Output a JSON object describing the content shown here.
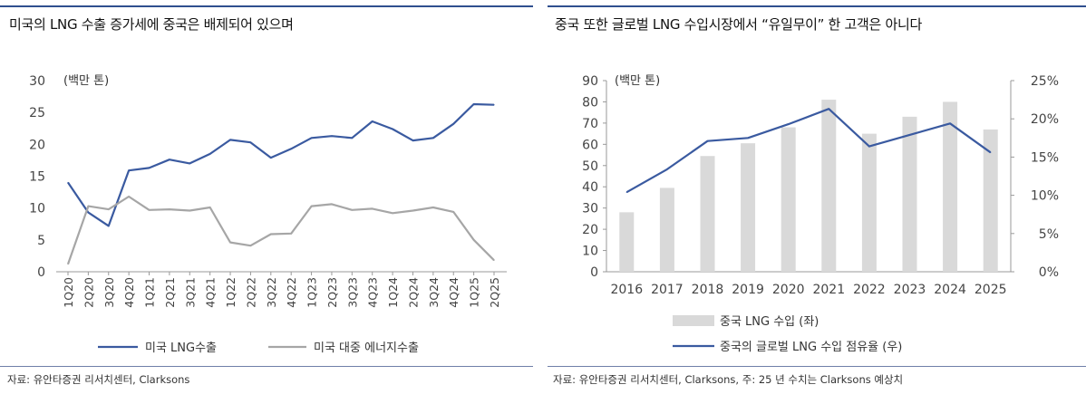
{
  "left": {
    "title": "미국의 LNG 수출 증가세에 중국은 배제되어 있으며",
    "source": "자료: 유안타증권 리서치센터, Clarksons"
  },
  "right": {
    "title": "중국 또한 글로벌 LNG 수입시장에서 “유일무이” 한 고객은 아니다",
    "source": "자료: 유안타증권 리서치센터, Clarksons, 주: 25 년 수치는 Clarksons 예상치"
  },
  "colors": {
    "accent_line": "#2f4f8f",
    "series_blue": "#3a5aa0",
    "series_gray": "#a6a6a6",
    "bar_gray": "#d9d9d9",
    "axis": "#999999"
  },
  "chart_data": [
    {
      "type": "line",
      "unit_label": "(백만 톤)",
      "categories": [
        "1Q20",
        "2Q20",
        "3Q20",
        "4Q20",
        "1Q21",
        "2Q21",
        "3Q21",
        "4Q21",
        "1Q22",
        "2Q22",
        "3Q22",
        "4Q22",
        "1Q23",
        "2Q23",
        "3Q23",
        "4Q23",
        "1Q24",
        "2Q24",
        "3Q24",
        "4Q24",
        "1Q25",
        "2Q25"
      ],
      "ylim": [
        0,
        30
      ],
      "yticks": [
        0,
        5,
        10,
        15,
        20,
        25,
        30
      ],
      "series": [
        {
          "name": "미국 LNG수출",
          "color": "#3a5aa0",
          "values": [
            14.0,
            9.3,
            7.2,
            15.9,
            16.3,
            17.6,
            17.0,
            18.5,
            20.7,
            20.3,
            17.9,
            19.3,
            21.0,
            21.3,
            21.0,
            23.6,
            22.4,
            20.6,
            21.0,
            23.2,
            26.3,
            26.2
          ]
        },
        {
          "name": "미국 대중 에너지수출",
          "color": "#a6a6a6",
          "values": [
            1.2,
            10.3,
            9.8,
            11.8,
            9.7,
            9.8,
            9.6,
            10.1,
            4.6,
            4.1,
            5.9,
            6.0,
            10.3,
            10.6,
            9.7,
            9.9,
            9.2,
            9.6,
            10.1,
            9.4,
            5.0,
            1.8
          ]
        }
      ]
    },
    {
      "type": "bar+line",
      "unit_label": "(백만 톤)",
      "categories": [
        "2016",
        "2017",
        "2018",
        "2019",
        "2020",
        "2021",
        "2022",
        "2023",
        "2024",
        "2025"
      ],
      "ylim_left": [
        0,
        90
      ],
      "yticks_left": [
        0,
        10,
        20,
        30,
        40,
        50,
        60,
        70,
        80,
        90
      ],
      "ylim_right": [
        0,
        25
      ],
      "yticks_right": [
        "0%",
        "5%",
        "10%",
        "15%",
        "20%",
        "25%"
      ],
      "series": [
        {
          "name": "중국 LNG 수입 (좌)",
          "type": "bar",
          "axis": "left",
          "color": "#d9d9d9",
          "values": [
            28,
            39.5,
            54.5,
            60.5,
            68,
            81,
            65,
            73,
            80,
            67
          ]
        },
        {
          "name": "중국의 글로벌 LNG 수입 점유율 (우)",
          "type": "line",
          "axis": "right",
          "color": "#3a5aa0",
          "values": [
            10.4,
            13.4,
            17.1,
            17.5,
            19.3,
            21.3,
            16.4,
            17.9,
            19.4,
            15.6
          ]
        }
      ]
    }
  ]
}
